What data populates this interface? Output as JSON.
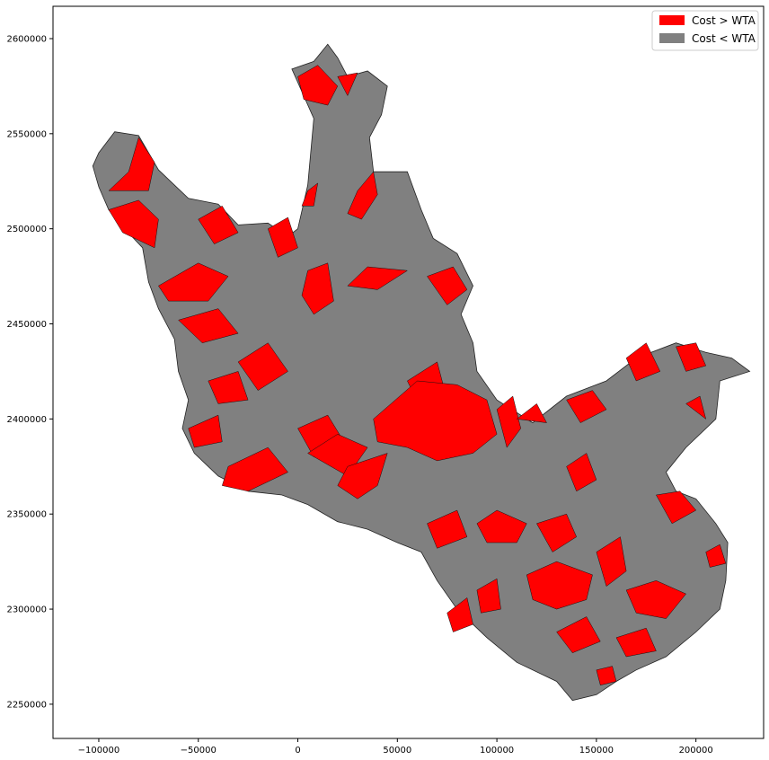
{
  "chart_data": {
    "type": "choropleth-map",
    "title": "",
    "xlabel": "",
    "ylabel": "",
    "xlim": [
      -123000,
      234000
    ],
    "ylim": [
      2232000,
      2617000
    ],
    "x_ticks": [
      -100000,
      -50000,
      0,
      50000,
      100000,
      150000,
      200000
    ],
    "y_ticks": [
      2250000,
      2300000,
      2350000,
      2400000,
      2450000,
      2500000,
      2550000,
      2600000
    ],
    "x_tick_labels": [
      "−100000",
      "−50000",
      "0",
      "50000",
      "100000",
      "150000",
      "200000"
    ],
    "y_tick_labels": [
      "2250000",
      "2300000",
      "2350000",
      "2400000",
      "2450000",
      "2500000",
      "2550000",
      "2600000"
    ],
    "grid": false,
    "legend": {
      "placement": "top-right",
      "entries": [
        {
          "label": "Cost > WTA",
          "color": "#ff0000"
        },
        {
          "label": "Cost < WTA",
          "color": "#808080"
        }
      ]
    },
    "region_outline": [
      [
        -100000,
        2540000
      ],
      [
        -92000,
        2551000
      ],
      [
        -80000,
        2549000
      ],
      [
        -70000,
        2531000
      ],
      [
        -55000,
        2516000
      ],
      [
        -40000,
        2513000
      ],
      [
        -30000,
        2502000
      ],
      [
        -15000,
        2503000
      ],
      [
        -5000,
        2496000
      ],
      [
        0,
        2500000
      ],
      [
        5000,
        2523000
      ],
      [
        8000,
        2558000
      ],
      [
        -3000,
        2584000
      ],
      [
        8000,
        2588000
      ],
      [
        15000,
        2597000
      ],
      [
        20000,
        2590000
      ],
      [
        25000,
        2580000
      ],
      [
        35000,
        2583000
      ],
      [
        45000,
        2575000
      ],
      [
        42000,
        2560000
      ],
      [
        36000,
        2548000
      ],
      [
        38000,
        2530000
      ],
      [
        55000,
        2530000
      ],
      [
        62000,
        2510000
      ],
      [
        68000,
        2495000
      ],
      [
        80000,
        2487000
      ],
      [
        88000,
        2470000
      ],
      [
        82000,
        2455000
      ],
      [
        88000,
        2440000
      ],
      [
        90000,
        2425000
      ],
      [
        100000,
        2410000
      ],
      [
        118000,
        2398000
      ],
      [
        135000,
        2412000
      ],
      [
        155000,
        2420000
      ],
      [
        170000,
        2432000
      ],
      [
        190000,
        2440000
      ],
      [
        205000,
        2435000
      ],
      [
        218000,
        2432000
      ],
      [
        227000,
        2425000
      ],
      [
        212000,
        2420000
      ],
      [
        210000,
        2400000
      ],
      [
        195000,
        2385000
      ],
      [
        185000,
        2372000
      ],
      [
        190000,
        2362000
      ],
      [
        200000,
        2358000
      ],
      [
        210000,
        2345000
      ],
      [
        216000,
        2335000
      ],
      [
        215000,
        2315000
      ],
      [
        212000,
        2300000
      ],
      [
        200000,
        2288000
      ],
      [
        185000,
        2275000
      ],
      [
        170000,
        2268000
      ],
      [
        160000,
        2262000
      ],
      [
        150000,
        2255000
      ],
      [
        138000,
        2252000
      ],
      [
        130000,
        2262000
      ],
      [
        110000,
        2272000
      ],
      [
        95000,
        2285000
      ],
      [
        80000,
        2300000
      ],
      [
        70000,
        2315000
      ],
      [
        62000,
        2330000
      ],
      [
        50000,
        2335000
      ],
      [
        35000,
        2342000
      ],
      [
        20000,
        2346000
      ],
      [
        5000,
        2355000
      ],
      [
        -8000,
        2360000
      ],
      [
        -25000,
        2362000
      ],
      [
        -40000,
        2370000
      ],
      [
        -52000,
        2382000
      ],
      [
        -58000,
        2395000
      ],
      [
        -55000,
        2410000
      ],
      [
        -60000,
        2425000
      ],
      [
        -62000,
        2442000
      ],
      [
        -70000,
        2458000
      ],
      [
        -75000,
        2472000
      ],
      [
        -78000,
        2490000
      ],
      [
        -87000,
        2500000
      ],
      [
        -95000,
        2510000
      ],
      [
        -100000,
        2522000
      ],
      [
        -103000,
        2533000
      ]
    ],
    "red_regions": [
      [
        [
          -95000,
          2520000
        ],
        [
          -85000,
          2530000
        ],
        [
          -80000,
          2548000
        ],
        [
          -72000,
          2535000
        ],
        [
          -75000,
          2520000
        ]
      ],
      [
        [
          -95000,
          2510000
        ],
        [
          -80000,
          2515000
        ],
        [
          -70000,
          2505000
        ],
        [
          -72000,
          2490000
        ],
        [
          -88000,
          2498000
        ]
      ],
      [
        [
          -70000,
          2470000
        ],
        [
          -50000,
          2482000
        ],
        [
          -35000,
          2475000
        ],
        [
          -45000,
          2462000
        ],
        [
          -65000,
          2462000
        ]
      ],
      [
        [
          -60000,
          2452000
        ],
        [
          -40000,
          2458000
        ],
        [
          -30000,
          2445000
        ],
        [
          -48000,
          2440000
        ]
      ],
      [
        [
          -50000,
          2505000
        ],
        [
          -38000,
          2512000
        ],
        [
          -30000,
          2498000
        ],
        [
          -42000,
          2492000
        ]
      ],
      [
        [
          0,
          2580000
        ],
        [
          10000,
          2586000
        ],
        [
          20000,
          2575000
        ],
        [
          15000,
          2565000
        ],
        [
          3000,
          2568000
        ]
      ],
      [
        [
          20000,
          2580000
        ],
        [
          30000,
          2582000
        ],
        [
          25000,
          2570000
        ]
      ],
      [
        [
          5000,
          2520000
        ],
        [
          10000,
          2524000
        ],
        [
          8000,
          2512000
        ],
        [
          2000,
          2512000
        ]
      ],
      [
        [
          30000,
          2520000
        ],
        [
          38000,
          2530000
        ],
        [
          40000,
          2518000
        ],
        [
          32000,
          2505000
        ],
        [
          25000,
          2508000
        ]
      ],
      [
        [
          -15000,
          2500000
        ],
        [
          -5000,
          2506000
        ],
        [
          0,
          2490000
        ],
        [
          -10000,
          2485000
        ]
      ],
      [
        [
          5000,
          2478000
        ],
        [
          15000,
          2482000
        ],
        [
          18000,
          2462000
        ],
        [
          8000,
          2455000
        ],
        [
          2000,
          2465000
        ]
      ],
      [
        [
          25000,
          2470000
        ],
        [
          35000,
          2480000
        ],
        [
          55000,
          2478000
        ],
        [
          40000,
          2468000
        ]
      ],
      [
        [
          65000,
          2475000
        ],
        [
          78000,
          2480000
        ],
        [
          85000,
          2468000
        ],
        [
          75000,
          2460000
        ]
      ],
      [
        [
          -30000,
          2430000
        ],
        [
          -15000,
          2440000
        ],
        [
          -5000,
          2425000
        ],
        [
          -20000,
          2415000
        ]
      ],
      [
        [
          -45000,
          2420000
        ],
        [
          -30000,
          2425000
        ],
        [
          -25000,
          2410000
        ],
        [
          -40000,
          2408000
        ]
      ],
      [
        [
          -55000,
          2395000
        ],
        [
          -40000,
          2402000
        ],
        [
          -38000,
          2388000
        ],
        [
          -52000,
          2385000
        ]
      ],
      [
        [
          -35000,
          2375000
        ],
        [
          -15000,
          2385000
        ],
        [
          -5000,
          2372000
        ],
        [
          -25000,
          2362000
        ],
        [
          -38000,
          2365000
        ]
      ],
      [
        [
          0,
          2395000
        ],
        [
          15000,
          2402000
        ],
        [
          22000,
          2390000
        ],
        [
          8000,
          2380000
        ]
      ],
      [
        [
          5000,
          2382000
        ],
        [
          20000,
          2392000
        ],
        [
          35000,
          2385000
        ],
        [
          25000,
          2370000
        ]
      ],
      [
        [
          25000,
          2375000
        ],
        [
          45000,
          2382000
        ],
        [
          40000,
          2365000
        ],
        [
          30000,
          2358000
        ],
        [
          20000,
          2365000
        ]
      ],
      [
        [
          55000,
          2420000
        ],
        [
          70000,
          2430000
        ],
        [
          75000,
          2410000
        ],
        [
          62000,
          2405000
        ]
      ],
      [
        [
          38000,
          2400000
        ],
        [
          60000,
          2420000
        ],
        [
          80000,
          2418000
        ],
        [
          95000,
          2410000
        ],
        [
          100000,
          2392000
        ],
        [
          88000,
          2382000
        ],
        [
          70000,
          2378000
        ],
        [
          55000,
          2385000
        ],
        [
          40000,
          2388000
        ]
      ],
      [
        [
          100000,
          2405000
        ],
        [
          108000,
          2412000
        ],
        [
          112000,
          2395000
        ],
        [
          105000,
          2385000
        ]
      ],
      [
        [
          110000,
          2400000
        ],
        [
          120000,
          2408000
        ],
        [
          125000,
          2398000
        ]
      ],
      [
        [
          135000,
          2410000
        ],
        [
          148000,
          2415000
        ],
        [
          155000,
          2405000
        ],
        [
          142000,
          2398000
        ]
      ],
      [
        [
          165000,
          2432000
        ],
        [
          175000,
          2440000
        ],
        [
          182000,
          2425000
        ],
        [
          170000,
          2420000
        ]
      ],
      [
        [
          190000,
          2438000
        ],
        [
          200000,
          2440000
        ],
        [
          205000,
          2428000
        ],
        [
          195000,
          2425000
        ]
      ],
      [
        [
          195000,
          2408000
        ],
        [
          202000,
          2412000
        ],
        [
          205000,
          2400000
        ]
      ],
      [
        [
          135000,
          2375000
        ],
        [
          145000,
          2382000
        ],
        [
          150000,
          2368000
        ],
        [
          140000,
          2362000
        ]
      ],
      [
        [
          90000,
          2345000
        ],
        [
          100000,
          2352000
        ],
        [
          115000,
          2345000
        ],
        [
          110000,
          2335000
        ],
        [
          95000,
          2335000
        ]
      ],
      [
        [
          120000,
          2345000
        ],
        [
          135000,
          2350000
        ],
        [
          140000,
          2338000
        ],
        [
          128000,
          2330000
        ]
      ],
      [
        [
          115000,
          2318000
        ],
        [
          130000,
          2325000
        ],
        [
          148000,
          2318000
        ],
        [
          145000,
          2305000
        ],
        [
          130000,
          2300000
        ],
        [
          118000,
          2305000
        ]
      ],
      [
        [
          150000,
          2330000
        ],
        [
          162000,
          2338000
        ],
        [
          165000,
          2320000
        ],
        [
          155000,
          2312000
        ]
      ],
      [
        [
          165000,
          2310000
        ],
        [
          180000,
          2315000
        ],
        [
          195000,
          2308000
        ],
        [
          185000,
          2295000
        ],
        [
          170000,
          2298000
        ]
      ],
      [
        [
          180000,
          2360000
        ],
        [
          192000,
          2362000
        ],
        [
          200000,
          2352000
        ],
        [
          188000,
          2345000
        ]
      ],
      [
        [
          205000,
          2330000
        ],
        [
          212000,
          2334000
        ],
        [
          215000,
          2324000
        ],
        [
          207000,
          2322000
        ]
      ],
      [
        [
          65000,
          2345000
        ],
        [
          80000,
          2352000
        ],
        [
          85000,
          2338000
        ],
        [
          70000,
          2332000
        ]
      ],
      [
        [
          130000,
          2288000
        ],
        [
          145000,
          2296000
        ],
        [
          152000,
          2283000
        ],
        [
          138000,
          2277000
        ]
      ],
      [
        [
          160000,
          2285000
        ],
        [
          175000,
          2290000
        ],
        [
          180000,
          2278000
        ],
        [
          165000,
          2275000
        ]
      ],
      [
        [
          150000,
          2268000
        ],
        [
          158000,
          2270000
        ],
        [
          160000,
          2262000
        ],
        [
          152000,
          2260000
        ]
      ],
      [
        [
          90000,
          2310000
        ],
        [
          100000,
          2316000
        ],
        [
          102000,
          2300000
        ],
        [
          92000,
          2298000
        ]
      ],
      [
        [
          75000,
          2298000
        ],
        [
          85000,
          2306000
        ],
        [
          88000,
          2292000
        ],
        [
          78000,
          2288000
        ]
      ]
    ]
  }
}
